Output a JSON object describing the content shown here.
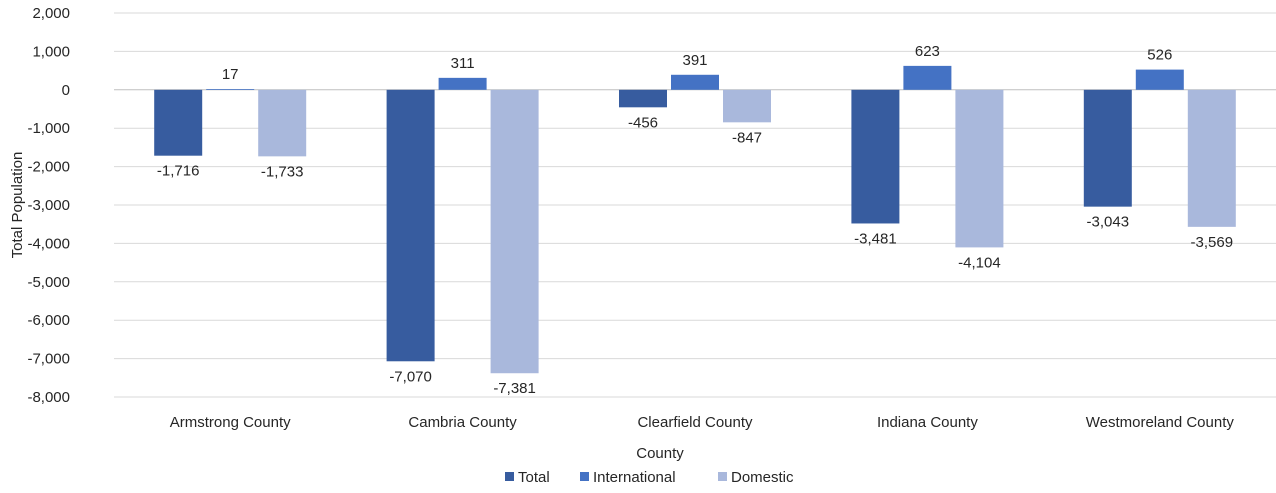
{
  "chart_data": {
    "type": "bar",
    "title": "",
    "xlabel": "County",
    "ylabel": "Total Population",
    "ylim": [
      -8000,
      2000
    ],
    "yticks": [
      2000,
      1000,
      0,
      -1000,
      -2000,
      -3000,
      -4000,
      -5000,
      -6000,
      -7000,
      -8000
    ],
    "ytick_labels": [
      "2,000",
      "1,000",
      "0",
      "-1,000",
      "-2,000",
      "-3,000",
      "-4,000",
      "-5,000",
      "-6,000",
      "-7,000",
      "-8,000"
    ],
    "categories": [
      "Armstrong County",
      "Cambria County",
      "Clearfield County",
      "Indiana County",
      "Westmoreland County"
    ],
    "series": [
      {
        "name": "Total",
        "color": "#375c9f",
        "values": [
          -1716,
          -7070,
          -456,
          -3481,
          -3043
        ],
        "labels": [
          "-1,716",
          "-7,070",
          "-456",
          "-3,481",
          "-3,043"
        ]
      },
      {
        "name": "International",
        "color": "#4472c4",
        "values": [
          17,
          311,
          391,
          623,
          526
        ],
        "labels": [
          "17",
          "311",
          "391",
          "623",
          "526"
        ]
      },
      {
        "name": "Domestic",
        "color": "#a9b8dc",
        "values": [
          -1733,
          -7381,
          -847,
          -4104,
          -3569
        ],
        "labels": [
          "-1,733",
          "-7,381",
          "-847",
          "-4,104",
          "-3,569"
        ]
      }
    ],
    "grid": true,
    "legend_position": "bottom"
  }
}
